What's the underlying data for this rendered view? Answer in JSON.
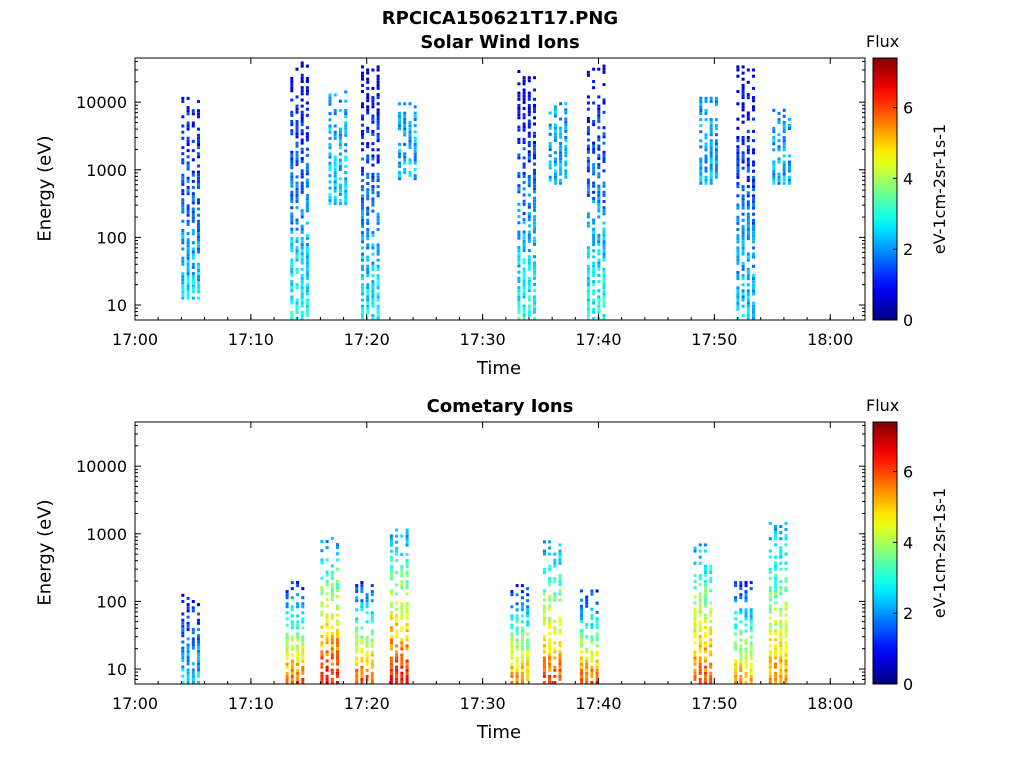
{
  "figure_title": "RPCICA150621T17.PNG",
  "chart_data": [
    {
      "type": "heatmap",
      "title": "Solar Wind Ions",
      "xlabel": "Time",
      "ylabel": "Energy (eV)",
      "x_tick_labels": [
        "17:00",
        "17:10",
        "17:20",
        "17:30",
        "17:40",
        "17:50",
        "18:00"
      ],
      "y_tick_labels": [
        "10",
        "100",
        "1000",
        "10000"
      ],
      "y_scale": "log",
      "xlim_minutes": [
        0,
        63
      ],
      "ylim_eV": [
        6,
        45000
      ],
      "colorbar": {
        "label_top": "Flux",
        "label": "eV-1cm-2sr-1s-1",
        "ticks": [
          "0",
          "2",
          "4",
          "6"
        ],
        "range": [
          0,
          7.4
        ],
        "colormap": "jet"
      },
      "bursts": [
        {
          "time_min": 4.8,
          "emin": 12,
          "emax": 12000,
          "flux_low": 2.5,
          "flux_high": 0.8
        },
        {
          "time_min": 14.2,
          "emin": 6,
          "emax": 40000,
          "flux_low": 3.0,
          "flux_high": 0.5
        },
        {
          "time_min": 20.3,
          "emin": 6,
          "emax": 35000,
          "flux_low": 2.8,
          "flux_high": 0.5
        },
        {
          "time_min": 33.8,
          "emin": 6,
          "emax": 30000,
          "flux_low": 3.0,
          "flux_high": 0.5
        },
        {
          "time_min": 39.8,
          "emin": 6,
          "emax": 40000,
          "flux_low": 3.0,
          "flux_high": 0.5
        },
        {
          "time_min": 52.7,
          "emin": 6,
          "emax": 35000,
          "flux_low": 2.5,
          "flux_high": 0.5
        },
        {
          "time_min": 17.5,
          "emin": 300,
          "emax": 15000,
          "flux_low": 2.5,
          "flux_high": 2.0
        },
        {
          "time_min": 23.5,
          "emin": 700,
          "emax": 10000,
          "flux_low": 2.2,
          "flux_high": 2.0
        },
        {
          "time_min": 36.5,
          "emin": 600,
          "emax": 10000,
          "flux_low": 2.2,
          "flux_high": 2.0
        },
        {
          "time_min": 49.5,
          "emin": 600,
          "emax": 12000,
          "flux_low": 2.2,
          "flux_high": 2.0
        },
        {
          "time_min": 55.8,
          "emin": 600,
          "emax": 8000,
          "flux_low": 2.2,
          "flux_high": 2.0
        }
      ]
    },
    {
      "type": "heatmap",
      "title": "Cometary Ions",
      "xlabel": "Time",
      "ylabel": "Energy (eV)",
      "x_tick_labels": [
        "17:00",
        "17:10",
        "17:20",
        "17:30",
        "17:40",
        "17:50",
        "18:00"
      ],
      "y_tick_labels": [
        "10",
        "100",
        "1000",
        "10000"
      ],
      "y_scale": "log",
      "xlim_minutes": [
        0,
        63
      ],
      "ylim_eV": [
        6,
        45000
      ],
      "colorbar": {
        "label_top": "Flux",
        "label": "eV-1cm-2sr-1s-1",
        "ticks": [
          "0",
          "2",
          "4",
          "6"
        ],
        "range": [
          0,
          7.4
        ],
        "colormap": "jet"
      },
      "bursts": [
        {
          "time_min": 4.8,
          "emin": 6,
          "emax": 130,
          "flux_low": 2.5,
          "flux_high": 0.8
        },
        {
          "time_min": 13.8,
          "emin": 6,
          "emax": 200,
          "flux_low": 6.0,
          "flux_high": 1.0
        },
        {
          "time_min": 16.8,
          "emin": 6,
          "emax": 900,
          "flux_low": 6.5,
          "flux_high": 2.0
        },
        {
          "time_min": 19.8,
          "emin": 6,
          "emax": 200,
          "flux_low": 6.0,
          "flux_high": 1.0
        },
        {
          "time_min": 22.8,
          "emin": 6,
          "emax": 1200,
          "flux_low": 6.5,
          "flux_high": 2.0
        },
        {
          "time_min": 33.2,
          "emin": 6,
          "emax": 200,
          "flux_low": 5.5,
          "flux_high": 1.0
        },
        {
          "time_min": 36.0,
          "emin": 6,
          "emax": 800,
          "flux_low": 6.0,
          "flux_high": 2.0
        },
        {
          "time_min": 39.2,
          "emin": 6,
          "emax": 150,
          "flux_low": 6.0,
          "flux_high": 1.0
        },
        {
          "time_min": 49.0,
          "emin": 6,
          "emax": 800,
          "flux_low": 6.0,
          "flux_high": 2.0
        },
        {
          "time_min": 52.5,
          "emin": 6,
          "emax": 200,
          "flux_low": 5.5,
          "flux_high": 1.0
        },
        {
          "time_min": 55.5,
          "emin": 6,
          "emax": 1500,
          "flux_low": 5.5,
          "flux_high": 2.0
        }
      ]
    }
  ]
}
